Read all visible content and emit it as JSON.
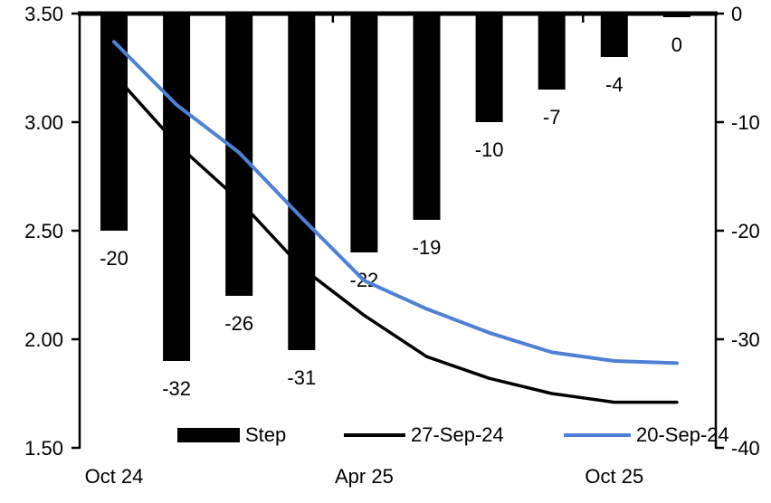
{
  "chart_data": {
    "type": "bar+line combo",
    "n_categories": 10,
    "x_tick_labels": [
      {
        "index": 0,
        "label": "Oct 24"
      },
      {
        "index": 4,
        "label": "Apr 25"
      },
      {
        "index": 8,
        "label": "Oct 25"
      }
    ],
    "bar_series": {
      "name": "Step",
      "axis": "right",
      "color": "#000000",
      "values": [
        -20,
        -32,
        -26,
        -31,
        -22,
        -19,
        -10,
        -7,
        -4,
        0
      ],
      "data_labels": [
        "-20",
        "-32",
        "-26",
        "-31",
        "-22",
        "-19",
        "-10",
        "-7",
        "-4",
        "0"
      ]
    },
    "line_series": [
      {
        "name": "27-Sep-24",
        "axis": "left",
        "color": "#000000",
        "values": [
          3.22,
          2.9,
          2.64,
          2.33,
          2.11,
          1.92,
          1.82,
          1.75,
          1.71,
          1.71
        ]
      },
      {
        "name": "20-Sep-24",
        "axis": "left",
        "color": "#4F80D5",
        "values": [
          3.37,
          3.08,
          2.86,
          2.56,
          2.27,
          2.14,
          2.03,
          1.94,
          1.9,
          1.89
        ]
      }
    ],
    "left_axis": {
      "min": 1.5,
      "max": 3.5,
      "ticks": [
        "3.50",
        "3.00",
        "2.50",
        "2.00",
        "1.50"
      ]
    },
    "right_axis": {
      "min": -40,
      "max": 0,
      "ticks": [
        "0",
        "-10",
        "-20",
        "-30",
        "-40"
      ]
    },
    "legend": [
      {
        "label": "Step",
        "type": "bar",
        "color": "#000000"
      },
      {
        "label": "27-Sep-24",
        "type": "line",
        "color": "#000000"
      },
      {
        "label": "20-Sep-24",
        "type": "line",
        "color": "#4F80D5"
      }
    ],
    "grid": false,
    "legend_position": "bottom-inside",
    "title": "",
    "xlabel": "",
    "ylabel_left": "",
    "ylabel_right": ""
  }
}
